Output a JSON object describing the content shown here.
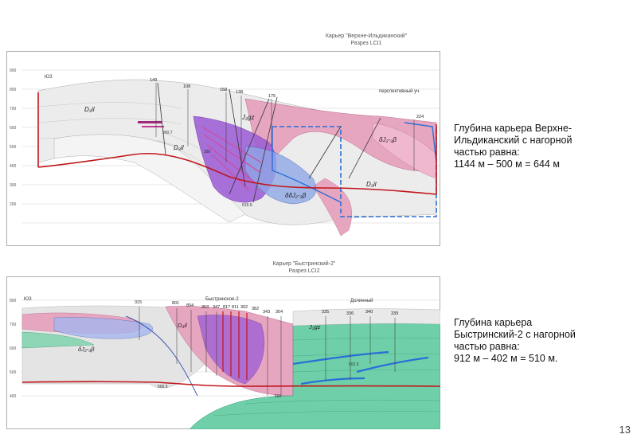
{
  "section1": {
    "title": "Карьер \"Верхне-Ильдиканский\"",
    "subtitle": "Разрез LCI1",
    "side_label": "ЮЗ",
    "area_label": "перспективный уч.",
    "depth_labels": [
      "900",
      "800",
      "700",
      "600",
      "500",
      "400",
      "300",
      "200"
    ],
    "well_labels": [
      "149",
      "108",
      "158",
      "138",
      "175",
      "224"
    ],
    "depth_values": [
      "300.7",
      "399",
      "615.5"
    ],
    "unit_labels": [
      "D₃il",
      "D₃il",
      "J₂gz",
      "δJ₂-₃β",
      "δδJ₂-₃β",
      "D₃il"
    ]
  },
  "section2": {
    "title": "Карьер \"Быстринский-2\"",
    "subtitle": "Разрез LCI2",
    "side_label": "ЮЗ",
    "area_labels": [
      "Быстринское-2",
      "Долинный"
    ],
    "depth_labels": [
      "800",
      "700",
      "600",
      "500",
      "400"
    ],
    "well_labels": [
      "315",
      "801",
      "804",
      "353",
      "347",
      "817",
      "811",
      "302",
      "382",
      "343",
      "304",
      "335",
      "336",
      "340",
      "339"
    ],
    "depth_values": [
      "500.5",
      "500",
      "502.5"
    ],
    "unit_labels": [
      "δJ₂-₃β",
      "D₃il",
      "J₂gz"
    ]
  },
  "desc1": {
    "lines": [
      "Глубина карьера Верхне-",
      "Ильдиканский с нагорной",
      "частью равна:",
      "1144 м – 500 м = 644 м"
    ]
  },
  "desc2": {
    "lines": [
      "Глубина карьера",
      "Быстринский-2  с нагорной",
      "частью равна:",
      "912 м – 402 м = 510 м."
    ]
  },
  "page_number": "13",
  "colors": {
    "pink": "#e7a6c0",
    "purple": "#9c5bd6",
    "blue": "#2a6fd8",
    "green": "#6fcfa9",
    "red": "#c0161a",
    "gray": "#d9d9d9"
  }
}
